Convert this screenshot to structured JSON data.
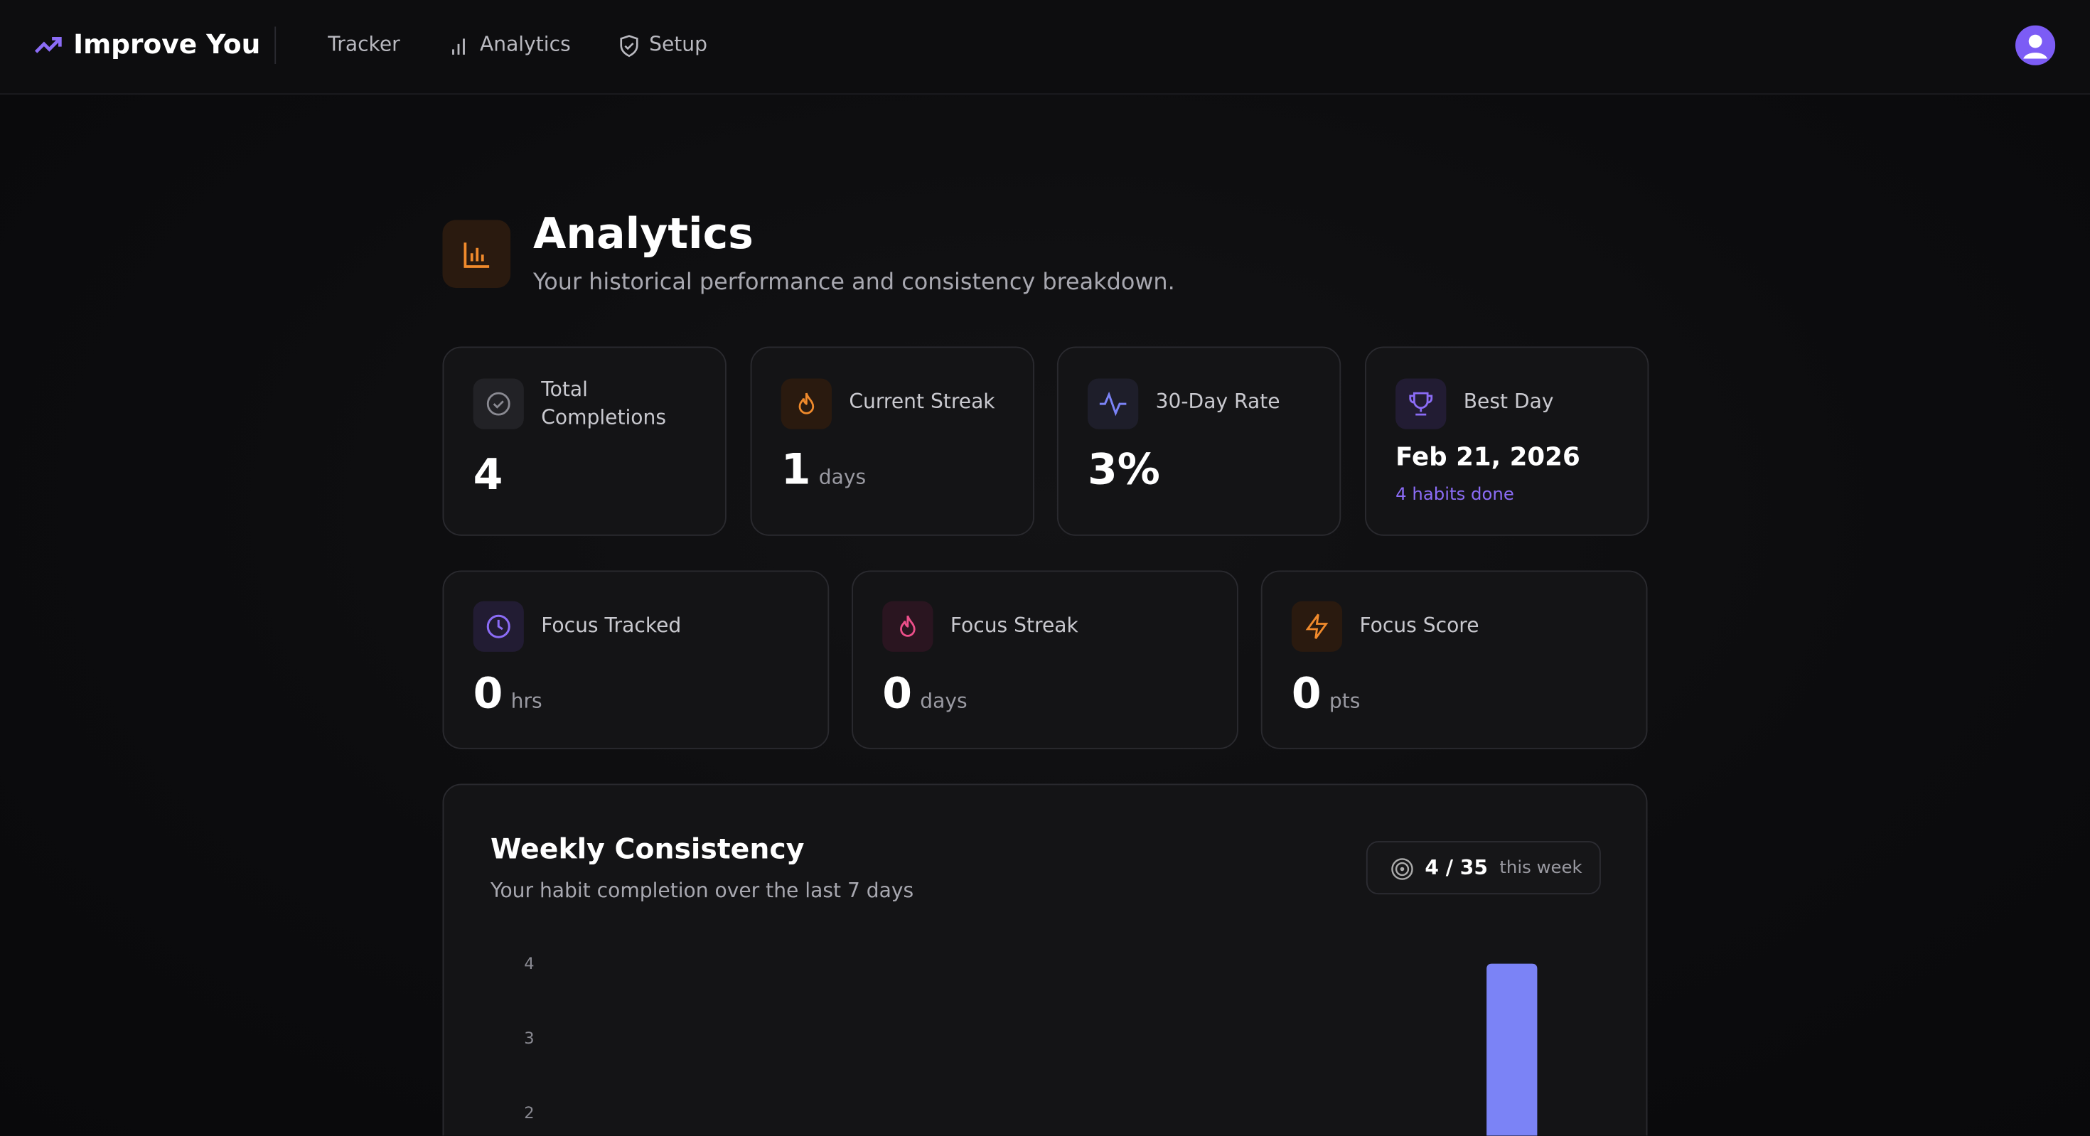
{
  "nav": {
    "brand": "Improve You",
    "links": [
      "Tracker",
      "Analytics",
      "Setup"
    ]
  },
  "header": {
    "title": "Analytics",
    "subtitle": "Your historical performance and consistency breakdown."
  },
  "stats": [
    {
      "label": "Total Completions",
      "value": "4"
    },
    {
      "label": "Current Streak",
      "value": "1",
      "unit": "days"
    },
    {
      "label": "30-Day Rate",
      "value": "3%"
    },
    {
      "label": "Best Day",
      "value": "Feb 21, 2026",
      "note": "4 habits done"
    }
  ],
  "focus": [
    {
      "label": "Focus Tracked",
      "value": "0",
      "unit": "hrs"
    },
    {
      "label": "Focus Streak",
      "value": "0",
      "unit": "days"
    },
    {
      "label": "Focus Score",
      "value": "0",
      "unit": "pts"
    }
  ],
  "weekly": {
    "title": "Weekly Consistency",
    "subtitle": "Your habit completion over the last 7 days",
    "badge": {
      "value": "4 / 35",
      "label": "this week"
    }
  },
  "chart_data": {
    "type": "bar",
    "values": [
      0,
      0,
      0,
      0,
      0,
      0,
      4
    ],
    "ylim": [
      0,
      4
    ],
    "yticks": [
      2,
      3,
      4
    ],
    "color": "#7b83f6"
  }
}
